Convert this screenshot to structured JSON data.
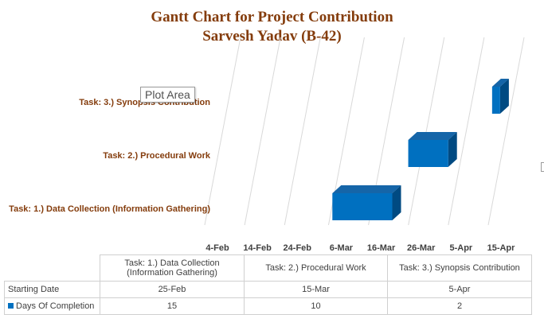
{
  "title_line1": "Gantt Chart for Project Contribution",
  "title_line2": "Sarvesh Yadav (B-42)",
  "tooltip": "Plot Area",
  "colors": {
    "title": "#843c0c",
    "bar_front": "#0070c0",
    "bar_top": "#1565a8",
    "bar_side": "#004a82",
    "gridline": "#d9d9d9",
    "category_label": "#843c0c"
  },
  "chart_data": {
    "type": "bar",
    "orientation": "horizontal",
    "subtype": "stacked-3d-gantt",
    "title": "Gantt Chart for Project Contribution\nSarvesh Yadav (B-42)",
    "categories": [
      "Task: 1.) Data Collection (Information Gathering)",
      "Task: 2.) Procedural Work",
      "Task: 3.) Synopsis Contribution"
    ],
    "x_ticks": [
      "4-Feb",
      "14-Feb",
      "24-Feb",
      "6-Mar",
      "16-Mar",
      "26-Mar",
      "5-Apr",
      "15-Apr"
    ],
    "series": [
      {
        "name": "Starting Date",
        "values": [
          "25-Feb",
          "15-Mar",
          "5-Apr"
        ],
        "hidden": true
      },
      {
        "name": "Days Of Completion",
        "values": [
          15,
          10,
          2
        ]
      }
    ],
    "grid": true
  },
  "table": {
    "headers": [
      "Task: 1.) Data Collection (Information Gathering)",
      "Task: 2.) Procedural Work",
      "Task: 3.) Synopsis Contribution"
    ],
    "rows": [
      {
        "label": "Starting  Date",
        "values": [
          "25-Feb",
          "15-Mar",
          "5-Apr"
        ],
        "legend_key": false
      },
      {
        "label": "Days Of Completion",
        "values": [
          "15",
          "10",
          "2"
        ],
        "legend_key": true
      }
    ]
  }
}
